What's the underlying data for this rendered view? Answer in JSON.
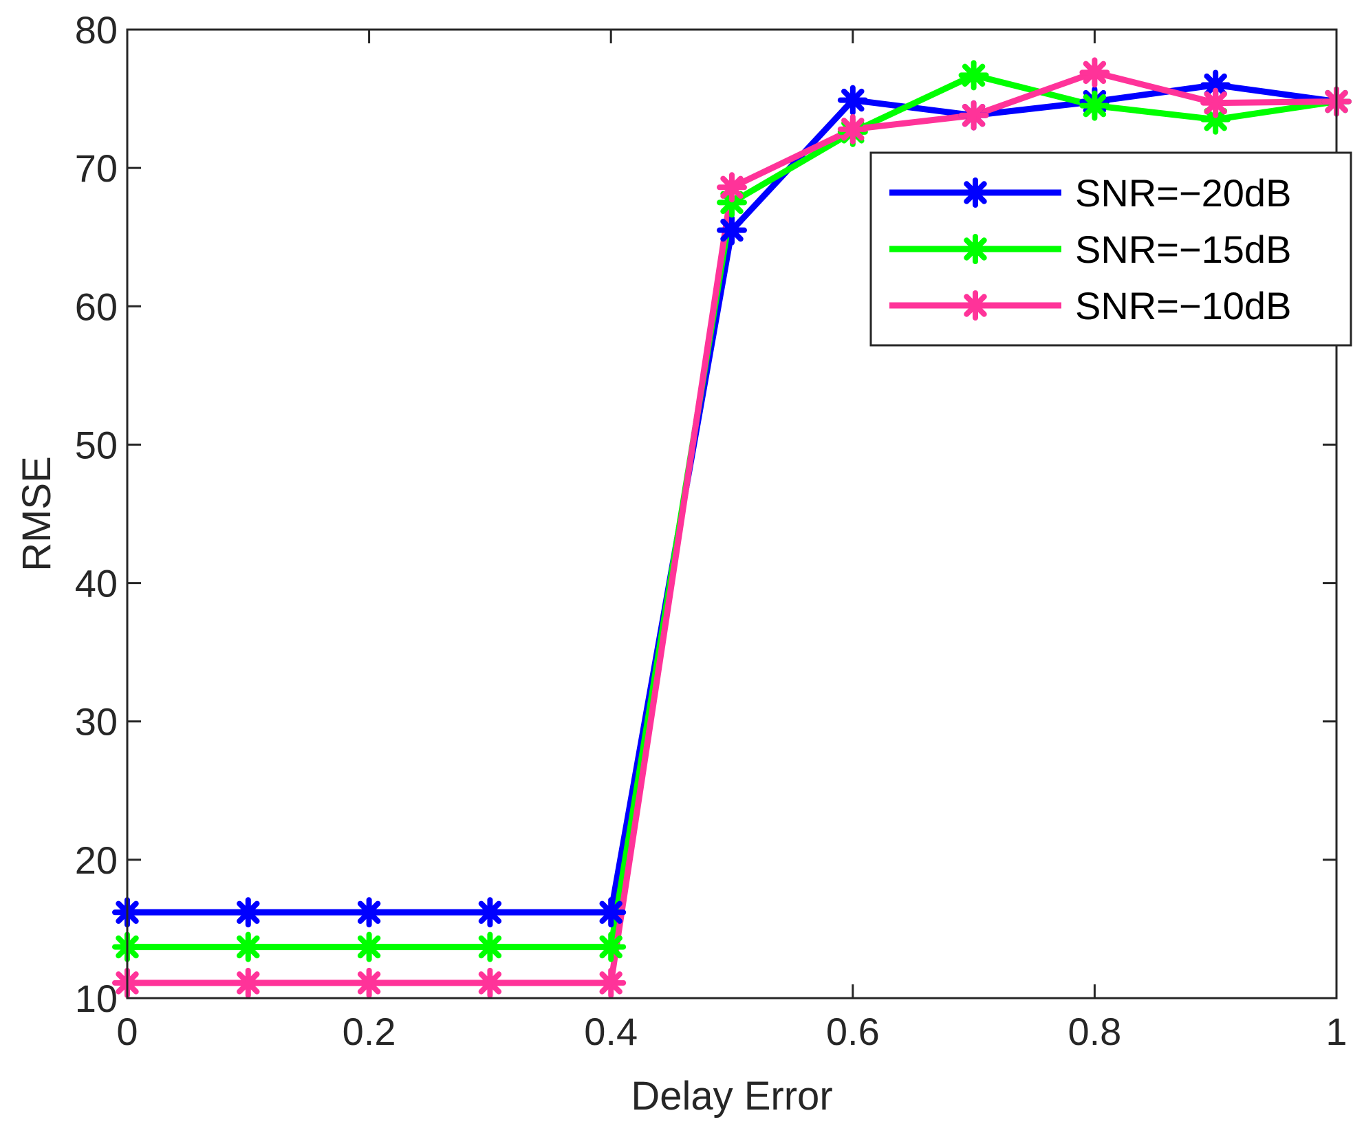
{
  "chart_data": {
    "type": "line",
    "xlabel": "Delay Error",
    "ylabel": "RMSE",
    "xlim": [
      0,
      1
    ],
    "ylim": [
      10,
      80
    ],
    "xticks": [
      0,
      0.2,
      0.4,
      0.6,
      0.8,
      1
    ],
    "xtick_labels": [
      "0",
      "0.2",
      "0.4",
      "0.6",
      "0.8",
      "1"
    ],
    "yticks": [
      10,
      20,
      30,
      40,
      50,
      60,
      70,
      80
    ],
    "ytick_labels": [
      "10",
      "20",
      "30",
      "40",
      "50",
      "60",
      "70",
      "80"
    ],
    "grid": false,
    "legend_position": "top-right",
    "marker": "asterisk",
    "x": [
      0,
      0.1,
      0.2,
      0.3,
      0.4,
      0.5,
      0.6,
      0.7,
      0.8,
      0.9,
      1.0
    ],
    "series": [
      {
        "name": "SNR=−20dB",
        "color": "#0000ff",
        "values": [
          16.2,
          16.2,
          16.2,
          16.2,
          16.2,
          65.5,
          74.9,
          73.8,
          74.8,
          76.0,
          74.8
        ]
      },
      {
        "name": "SNR=−15dB",
        "color": "#00ff00",
        "values": [
          13.7,
          13.7,
          13.7,
          13.7,
          13.7,
          67.5,
          72.6,
          76.7,
          74.5,
          73.5,
          74.8
        ]
      },
      {
        "name": "SNR=−10dB",
        "color": "#ff3399",
        "values": [
          11.1,
          11.1,
          11.1,
          11.1,
          11.1,
          68.6,
          72.8,
          73.8,
          76.9,
          74.7,
          74.8
        ]
      }
    ]
  }
}
